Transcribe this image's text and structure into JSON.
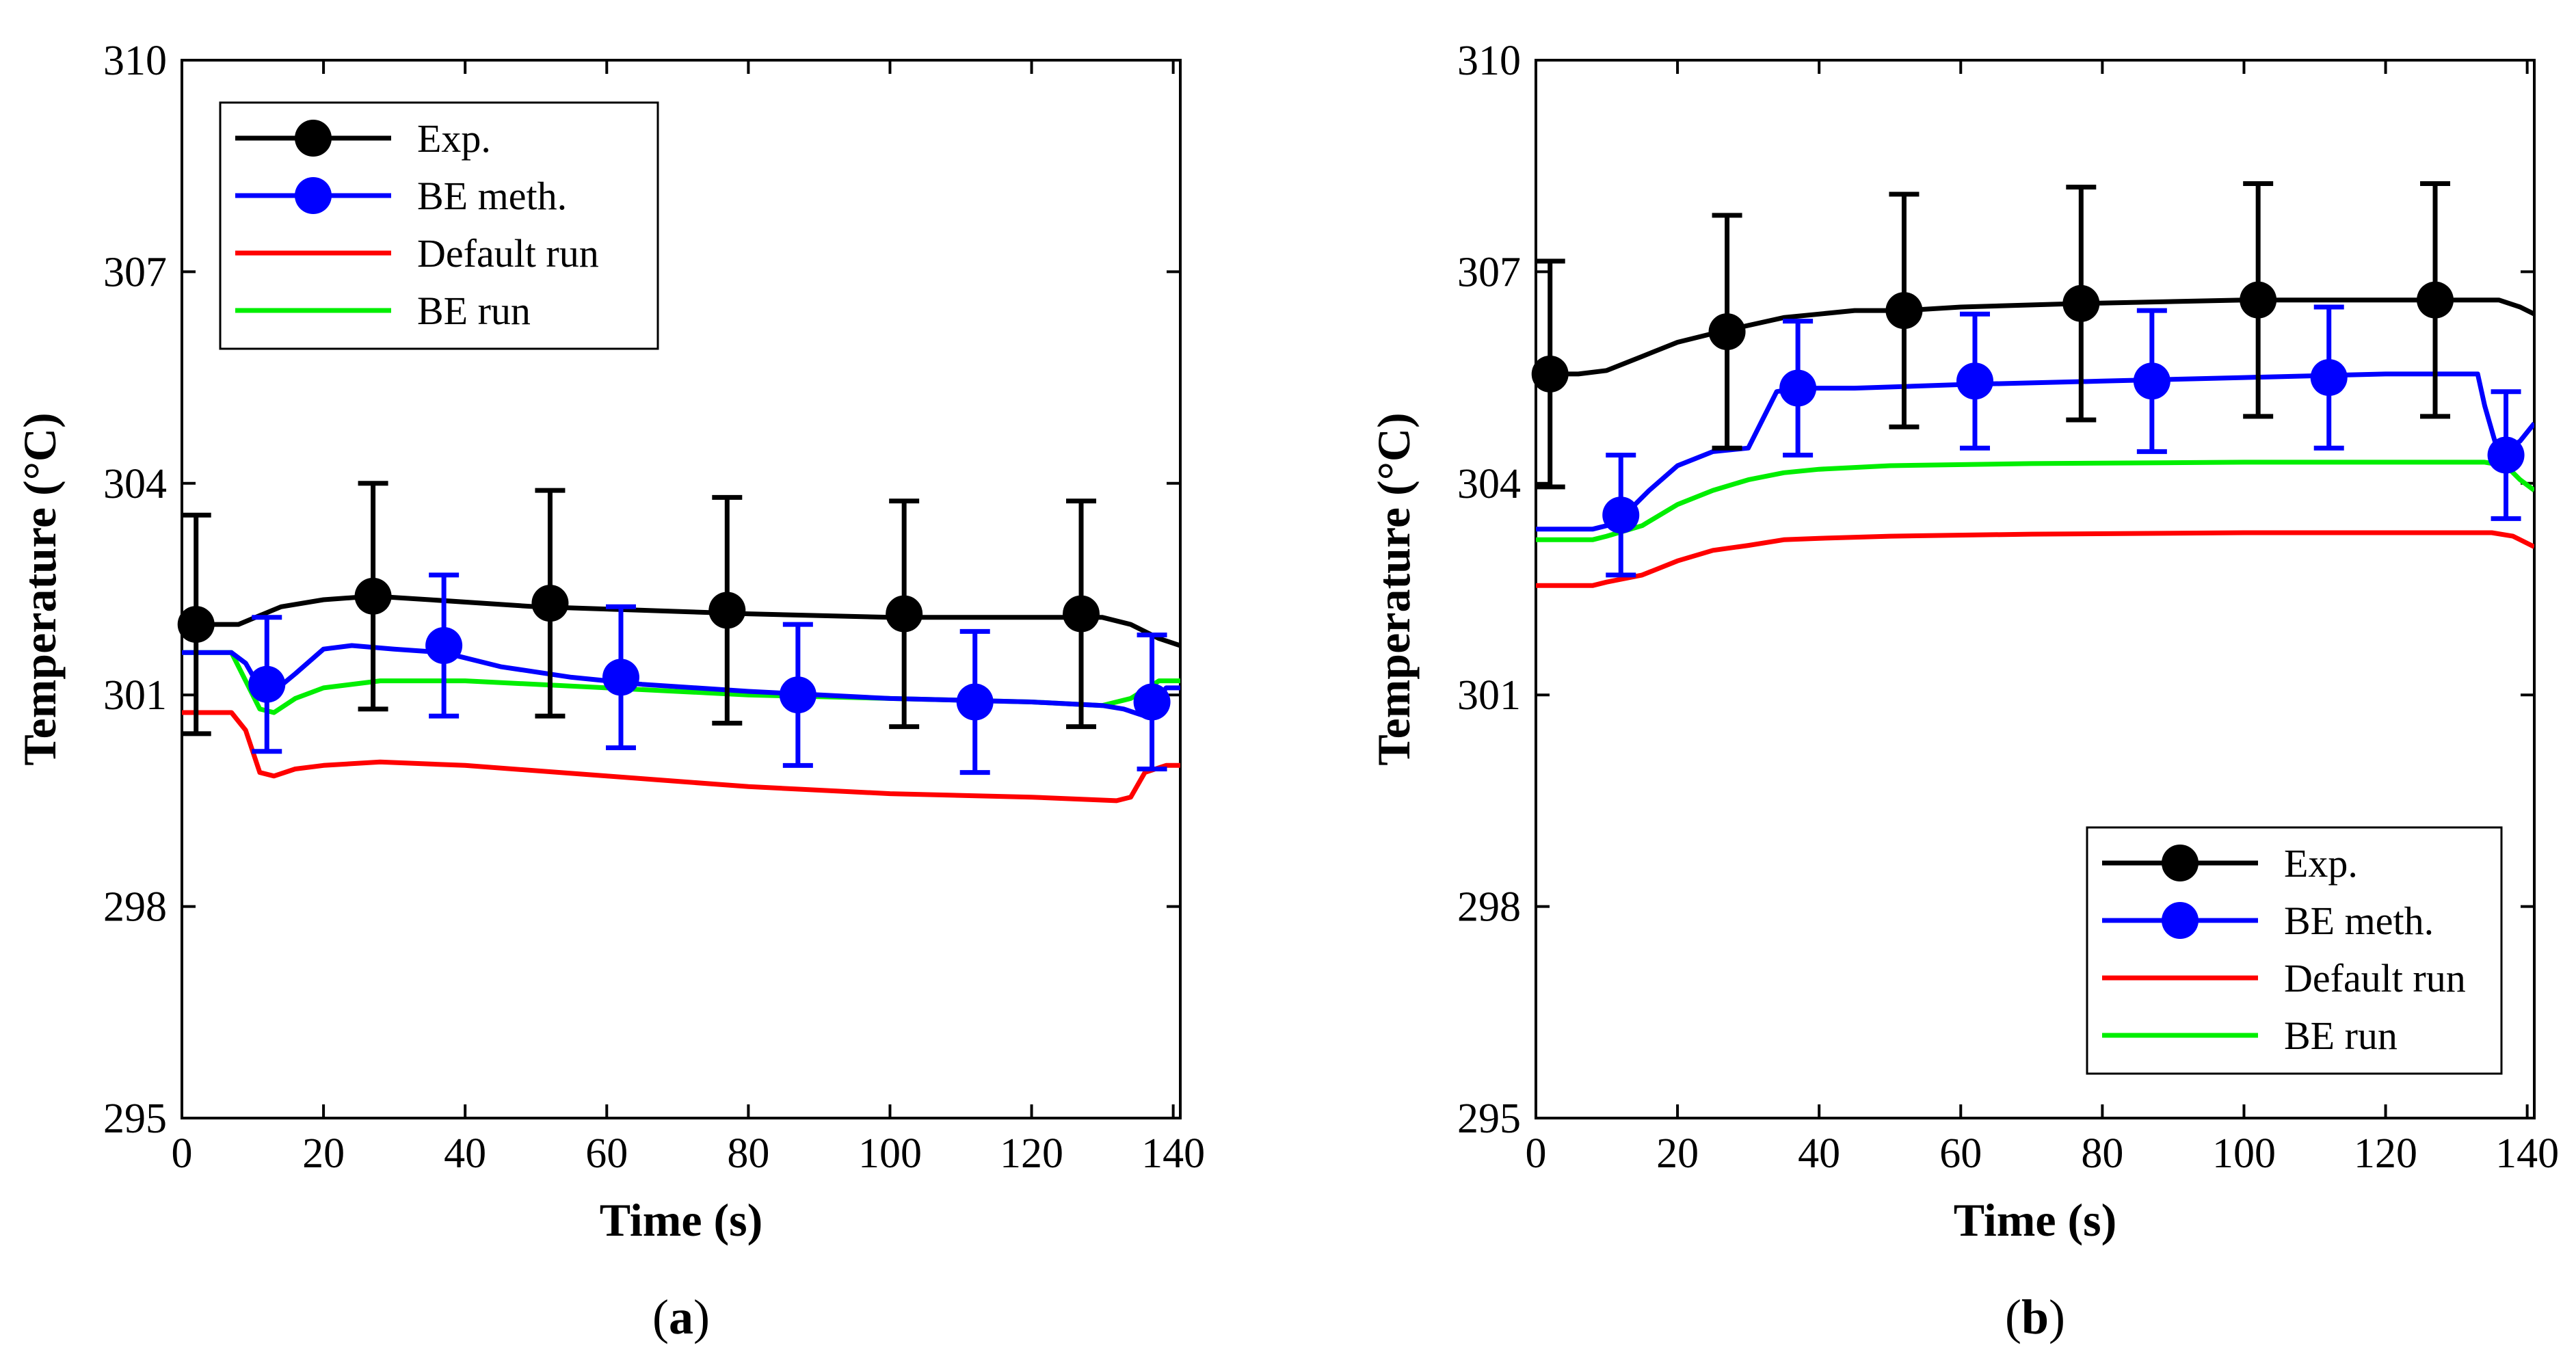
{
  "chart_data": [
    {
      "type": "line",
      "panel_label": "(a)",
      "panel_letter": "a",
      "xlabel": "Time (s)",
      "ylabel": "Temperature (°C)",
      "xlim": [
        0,
        141
      ],
      "ylim": [
        295,
        310
      ],
      "xticks": [
        0,
        20,
        40,
        60,
        80,
        100,
        120,
        140
      ],
      "yticks": [
        295,
        298,
        301,
        304,
        307,
        310
      ],
      "legend_position": "top-left",
      "series": [
        {
          "name": "Exp.",
          "color": "#000000",
          "x": [
            0,
            3,
            8,
            14,
            20,
            27,
            35,
            50,
            65,
            80,
            100,
            120,
            130,
            134,
            138,
            141
          ],
          "values": [
            302.0,
            302.0,
            302.0,
            302.25,
            302.35,
            302.4,
            302.35,
            302.25,
            302.2,
            302.15,
            302.1,
            302.1,
            302.1,
            302.0,
            301.8,
            301.7
          ],
          "markers": {
            "x": [
              2,
              27,
              52,
              77,
              102,
              127
            ],
            "y": [
              302.0,
              302.4,
              302.3,
              302.2,
              302.15,
              302.15
            ],
            "err": [
              1.55,
              1.6,
              1.6,
              1.6,
              1.6,
              1.6
            ]
          }
        },
        {
          "name": "BE meth.",
          "color": "#0000ff",
          "x": [
            0,
            3,
            7,
            9,
            11,
            13,
            16,
            20,
            24,
            30,
            37,
            45,
            55,
            65,
            80,
            100,
            120,
            130,
            133,
            136,
            139,
            141
          ],
          "values": [
            301.6,
            301.6,
            301.6,
            301.45,
            301.1,
            301.05,
            301.3,
            301.65,
            301.7,
            301.65,
            301.6,
            301.4,
            301.25,
            301.15,
            301.05,
            300.95,
            300.9,
            300.85,
            300.8,
            300.7,
            301.1,
            301.1
          ],
          "markers": {
            "x": [
              12,
              37,
              62,
              87,
              112,
              137
            ],
            "y": [
              301.15,
              301.7,
              301.25,
              301.0,
              300.9,
              300.9
            ],
            "err": [
              0.95,
              1.0,
              1.0,
              1.0,
              1.0,
              0.95
            ]
          }
        },
        {
          "name": "Default run",
          "color": "#ff0000",
          "x": [
            0,
            7,
            9,
            11,
            13,
            16,
            20,
            28,
            40,
            60,
            80,
            100,
            120,
            132,
            134,
            136,
            139,
            141
          ],
          "values": [
            300.75,
            300.75,
            300.5,
            299.9,
            299.85,
            299.95,
            300.0,
            300.05,
            300.0,
            299.85,
            299.7,
            299.6,
            299.55,
            299.5,
            299.55,
            299.9,
            300.0,
            300.0
          ]
        },
        {
          "name": "BE run",
          "color": "#00ee00",
          "x": [
            0,
            7,
            9,
            11,
            13,
            16,
            20,
            28,
            40,
            60,
            80,
            100,
            120,
            130,
            134,
            138,
            141
          ],
          "values": [
            301.6,
            301.6,
            301.2,
            300.8,
            300.75,
            300.95,
            301.1,
            301.2,
            301.2,
            301.1,
            301.0,
            300.95,
            300.9,
            300.85,
            300.95,
            301.2,
            301.2
          ]
        }
      ]
    },
    {
      "type": "line",
      "panel_label": "(b)",
      "panel_letter": "b",
      "xlabel": "Time (s)",
      "ylabel": "Temperature (°C)",
      "xlim": [
        0,
        141
      ],
      "ylim": [
        295,
        310
      ],
      "xticks": [
        0,
        20,
        40,
        60,
        80,
        100,
        120,
        140
      ],
      "yticks": [
        295,
        298,
        301,
        304,
        307,
        310
      ],
      "legend_position": "bottom-right",
      "series": [
        {
          "name": "Exp.",
          "color": "#000000",
          "x": [
            0,
            6,
            10,
            15,
            20,
            26,
            35,
            45,
            52,
            60,
            77,
            100,
            127,
            136,
            139,
            141
          ],
          "values": [
            305.55,
            305.55,
            305.6,
            305.8,
            306.0,
            306.15,
            306.35,
            306.45,
            306.45,
            306.5,
            306.55,
            306.6,
            306.6,
            306.6,
            306.5,
            306.4
          ],
          "markers": {
            "x": [
              2,
              27,
              52,
              77,
              102,
              127
            ],
            "y": [
              305.55,
              306.15,
              306.45,
              306.55,
              306.6,
              306.6
            ],
            "err": [
              1.6,
              1.65,
              1.65,
              1.65,
              1.65,
              1.65
            ]
          }
        },
        {
          "name": "BE meth.",
          "color": "#0000ff",
          "x": [
            0,
            8,
            10,
            12,
            16,
            20,
            25,
            30,
            32,
            34,
            37,
            45,
            60,
            80,
            100,
            120,
            133,
            134,
            136,
            139,
            141
          ],
          "values": [
            303.35,
            303.35,
            303.4,
            303.5,
            303.9,
            304.25,
            304.45,
            304.5,
            304.9,
            305.3,
            305.35,
            305.35,
            305.4,
            305.45,
            305.5,
            305.55,
            305.55,
            305.1,
            304.4,
            304.6,
            304.85
          ],
          "markers": {
            "x": [
              12,
              37,
              62,
              87,
              112,
              137
            ],
            "y": [
              303.55,
              305.35,
              305.45,
              305.45,
              305.5,
              304.4
            ],
            "err": [
              0.85,
              0.95,
              0.95,
              1.0,
              1.0,
              0.9
            ]
          }
        },
        {
          "name": "Default run",
          "color": "#ff0000",
          "x": [
            0,
            8,
            10,
            15,
            20,
            25,
            30,
            35,
            40,
            50,
            70,
            100,
            120,
            135,
            138,
            141
          ],
          "values": [
            302.55,
            302.55,
            302.6,
            302.7,
            302.9,
            303.05,
            303.12,
            303.2,
            303.22,
            303.25,
            303.28,
            303.3,
            303.3,
            303.3,
            303.25,
            303.1
          ],
          "markers": null
        },
        {
          "name": "BE run",
          "color": "#00ee00",
          "x": [
            0,
            8,
            10,
            15,
            20,
            25,
            30,
            35,
            40,
            50,
            70,
            100,
            120,
            134,
            137,
            139,
            141
          ],
          "values": [
            303.2,
            303.2,
            303.25,
            303.4,
            303.7,
            303.9,
            304.05,
            304.15,
            304.2,
            304.25,
            304.28,
            304.3,
            304.3,
            304.3,
            304.25,
            304.05,
            303.9
          ],
          "markers": null
        }
      ]
    }
  ]
}
